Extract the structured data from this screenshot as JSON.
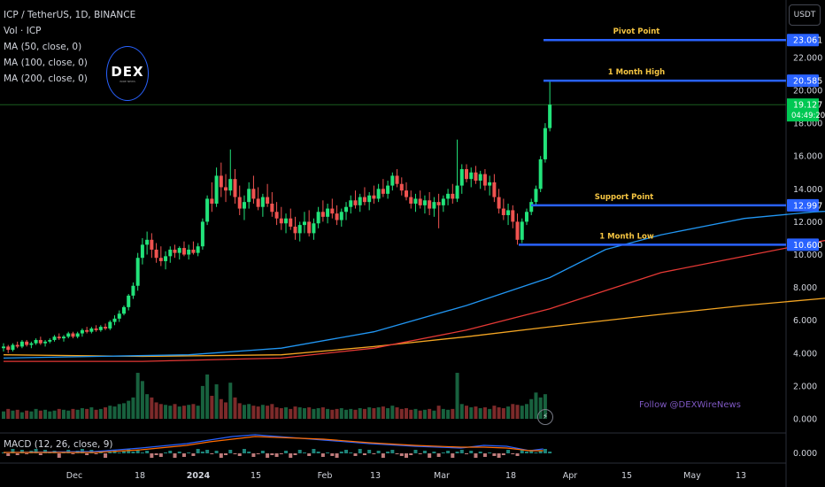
{
  "legend": {
    "symbol": "ICP / TetherUS, 1D, BINANCE",
    "volume": "Vol · ICP",
    "ma50": "MA (50, close, 0)",
    "ma100": "MA (100, close, 0)",
    "ma200": "MA (200, close, 0)"
  },
  "currency": "USDT",
  "logo": {
    "text": "DEX",
    "sub": "WIRE NEWS"
  },
  "follow_text": "Follow @DEXWireNews",
  "macd_label": "MACD (12, 26, close, 9)",
  "colors": {
    "up": "#22e37a",
    "down": "#ef5350",
    "ma50": "#2196f3",
    "ma100": "#e53935",
    "ma200": "#f5a623",
    "level_line": "#2962ff",
    "level_label": "#f5c542",
    "price_tag": "#00c853"
  },
  "price_axis": [
    "22.000",
    "20.000",
    "18.000",
    "16.000",
    "14.000",
    "12.000",
    "10.000",
    "8.000",
    "6.000",
    "4.000",
    "2.000",
    "0.000"
  ],
  "macd_axis": "0.000",
  "time_axis": [
    "Dec",
    "18",
    "2024",
    "15",
    "Feb",
    "13",
    "Mar",
    "18",
    "Apr",
    "15",
    "May",
    "13"
  ],
  "current_price": {
    "value": "19.127",
    "countdown": "04:49:20"
  },
  "levels": [
    {
      "name": "Pivot Point",
      "value": "23.061",
      "price": 23.061
    },
    {
      "name": "1 Month High",
      "value": "20.585",
      "price": 20.585
    },
    {
      "name": "Support Point",
      "value": "12.997",
      "price": 12.997
    },
    {
      "name": "1 Month Low",
      "value": "10.600",
      "price": 10.6
    }
  ],
  "chart_data": {
    "type": "candlestick",
    "series": [
      {
        "name": "MA (50, close, 0)"
      },
      {
        "name": "MA (100, close, 0)"
      },
      {
        "name": "MA (200, close, 0)"
      }
    ],
    "candles": [
      [
        4.3,
        4.6,
        4.1,
        4.4
      ],
      [
        4.4,
        4.5,
        4.0,
        4.2
      ],
      [
        4.2,
        4.6,
        4.1,
        4.5
      ],
      [
        4.5,
        4.7,
        4.3,
        4.4
      ],
      [
        4.4,
        4.8,
        4.3,
        4.7
      ],
      [
        4.7,
        4.8,
        4.4,
        4.5
      ],
      [
        4.5,
        4.7,
        4.3,
        4.6
      ],
      [
        4.6,
        4.9,
        4.5,
        4.8
      ],
      [
        4.8,
        5.0,
        4.5,
        4.6
      ],
      [
        4.6,
        4.8,
        4.4,
        4.7
      ],
      [
        4.7,
        4.9,
        4.6,
        4.8
      ],
      [
        4.8,
        5.1,
        4.7,
        5.0
      ],
      [
        5.0,
        5.2,
        4.8,
        4.9
      ],
      [
        4.9,
        5.1,
        4.7,
        5.0
      ],
      [
        5.0,
        5.3,
        4.9,
        5.2
      ],
      [
        5.2,
        5.3,
        4.9,
        5.0
      ],
      [
        5.0,
        5.3,
        4.9,
        5.2
      ],
      [
        5.2,
        5.5,
        5.0,
        5.4
      ],
      [
        5.4,
        5.6,
        5.2,
        5.3
      ],
      [
        5.3,
        5.6,
        5.2,
        5.5
      ],
      [
        5.5,
        5.7,
        5.3,
        5.4
      ],
      [
        5.4,
        5.7,
        5.3,
        5.6
      ],
      [
        5.6,
        5.8,
        5.4,
        5.5
      ],
      [
        5.5,
        6.0,
        5.4,
        5.9
      ],
      [
        5.9,
        6.3,
        5.7,
        6.1
      ],
      [
        6.1,
        6.6,
        5.9,
        6.4
      ],
      [
        6.4,
        6.9,
        6.3,
        6.8
      ],
      [
        6.8,
        7.6,
        6.6,
        7.5
      ],
      [
        7.5,
        8.3,
        7.3,
        8.1
      ],
      [
        8.1,
        10.1,
        7.8,
        9.8
      ],
      [
        9.8,
        11.0,
        9.4,
        10.6
      ],
      [
        10.6,
        11.4,
        10.0,
        10.9
      ],
      [
        10.9,
        11.3,
        9.8,
        10.3
      ],
      [
        10.3,
        10.7,
        9.5,
        9.8
      ],
      [
        9.8,
        10.5,
        9.3,
        9.6
      ],
      [
        9.6,
        10.2,
        9.1,
        9.9
      ],
      [
        9.9,
        10.5,
        9.5,
        10.3
      ],
      [
        10.3,
        10.6,
        9.8,
        10.1
      ],
      [
        10.1,
        10.5,
        9.7,
        10.4
      ],
      [
        10.4,
        10.8,
        9.9,
        10.0
      ],
      [
        10.0,
        10.6,
        9.7,
        10.3
      ],
      [
        10.3,
        10.8,
        10.0,
        10.1
      ],
      [
        10.1,
        10.7,
        9.9,
        10.5
      ],
      [
        10.5,
        12.2,
        10.3,
        12.0
      ],
      [
        12.0,
        13.6,
        11.8,
        13.4
      ],
      [
        13.4,
        14.4,
        12.6,
        13.1
      ],
      [
        13.1,
        15.3,
        12.9,
        14.8
      ],
      [
        14.8,
        15.6,
        13.5,
        14.1
      ],
      [
        14.1,
        14.9,
        13.2,
        13.9
      ],
      [
        13.9,
        16.4,
        13.6,
        14.6
      ],
      [
        14.6,
        15.2,
        13.1,
        13.5
      ],
      [
        13.5,
        14.2,
        12.4,
        12.8
      ],
      [
        12.8,
        13.6,
        12.1,
        13.2
      ],
      [
        13.2,
        14.4,
        12.8,
        14.0
      ],
      [
        14.0,
        14.8,
        13.1,
        13.4
      ],
      [
        13.4,
        14.1,
        12.7,
        12.9
      ],
      [
        12.9,
        13.7,
        12.3,
        13.5
      ],
      [
        13.5,
        14.3,
        12.9,
        13.1
      ],
      [
        13.1,
        13.8,
        12.3,
        12.6
      ],
      [
        12.6,
        13.2,
        11.8,
        12.2
      ],
      [
        12.2,
        12.9,
        11.5,
        11.9
      ],
      [
        11.9,
        12.5,
        11.3,
        12.2
      ],
      [
        12.2,
        12.8,
        11.5,
        11.7
      ],
      [
        11.7,
        12.3,
        10.9,
        11.3
      ],
      [
        11.3,
        12.0,
        10.8,
        11.8
      ],
      [
        11.8,
        12.6,
        11.3,
        12.0
      ],
      [
        12.0,
        12.7,
        11.1,
        11.3
      ],
      [
        11.3,
        12.2,
        10.9,
        11.9
      ],
      [
        11.9,
        12.9,
        11.6,
        12.6
      ],
      [
        12.6,
        13.3,
        12.0,
        12.3
      ],
      [
        12.3,
        13.1,
        11.9,
        12.8
      ],
      [
        12.8,
        13.4,
        12.2,
        12.5
      ],
      [
        12.5,
        13.0,
        11.8,
        12.1
      ],
      [
        12.1,
        12.8,
        11.7,
        12.6
      ],
      [
        12.6,
        13.2,
        12.1,
        12.9
      ],
      [
        12.9,
        13.6,
        12.5,
        13.3
      ],
      [
        13.3,
        13.9,
        12.8,
        13.0
      ],
      [
        13.0,
        13.7,
        12.6,
        13.5
      ],
      [
        13.5,
        14.1,
        13.0,
        13.2
      ],
      [
        13.2,
        13.8,
        12.7,
        13.6
      ],
      [
        13.6,
        14.2,
        13.1,
        13.4
      ],
      [
        13.4,
        14.3,
        13.2,
        14.0
      ],
      [
        14.0,
        14.6,
        13.5,
        13.7
      ],
      [
        13.7,
        14.5,
        13.4,
        14.2
      ],
      [
        14.2,
        15.0,
        13.9,
        14.8
      ],
      [
        14.8,
        15.2,
        14.1,
        14.3
      ],
      [
        14.3,
        14.7,
        13.6,
        13.9
      ],
      [
        13.9,
        14.4,
        13.3,
        13.5
      ],
      [
        13.5,
        13.9,
        12.8,
        13.1
      ],
      [
        13.1,
        13.7,
        12.6,
        13.4
      ],
      [
        13.4,
        13.9,
        12.8,
        13.0
      ],
      [
        13.0,
        13.6,
        12.5,
        13.3
      ],
      [
        13.3,
        13.8,
        12.4,
        12.8
      ],
      [
        12.8,
        13.5,
        12.3,
        13.2
      ],
      [
        13.2,
        13.7,
        11.6,
        13.0
      ],
      [
        13.0,
        13.6,
        12.6,
        13.4
      ],
      [
        13.4,
        14.0,
        13.0,
        13.7
      ],
      [
        13.7,
        14.3,
        13.1,
        13.4
      ],
      [
        13.4,
        17.0,
        13.2,
        14.2
      ],
      [
        14.2,
        15.5,
        13.7,
        15.2
      ],
      [
        15.2,
        15.5,
        14.4,
        14.6
      ],
      [
        14.6,
        15.3,
        14.1,
        15.0
      ],
      [
        15.0,
        15.4,
        14.3,
        14.5
      ],
      [
        14.5,
        15.1,
        14.0,
        14.9
      ],
      [
        14.9,
        15.2,
        13.9,
        14.2
      ],
      [
        14.2,
        14.8,
        13.6,
        14.4
      ],
      [
        14.4,
        14.9,
        13.2,
        13.5
      ],
      [
        13.5,
        14.0,
        12.5,
        12.8
      ],
      [
        12.8,
        13.4,
        12.1,
        12.4
      ],
      [
        12.4,
        13.1,
        11.8,
        12.7
      ],
      [
        12.7,
        13.0,
        11.6,
        12.0
      ],
      [
        12.0,
        12.5,
        10.6,
        10.9
      ],
      [
        10.9,
        12.2,
        10.7,
        12.0
      ],
      [
        12.0,
        12.8,
        11.8,
        12.6
      ],
      [
        12.6,
        13.4,
        12.4,
        13.2
      ],
      [
        13.2,
        14.2,
        13.0,
        14.0
      ],
      [
        14.0,
        16.0,
        13.8,
        15.8
      ],
      [
        15.8,
        18.0,
        15.6,
        17.7
      ],
      [
        17.7,
        20.585,
        17.5,
        19.127
      ]
    ],
    "volume": [
      0.45,
      0.6,
      0.5,
      0.55,
      0.4,
      0.5,
      0.45,
      0.6,
      0.5,
      0.55,
      0.45,
      0.5,
      0.6,
      0.55,
      0.5,
      0.6,
      0.55,
      0.65,
      0.6,
      0.7,
      0.55,
      0.6,
      0.7,
      0.8,
      0.75,
      0.9,
      0.95,
      1.1,
      1.3,
      2.8,
      2.3,
      1.5,
      1.3,
      1.0,
      0.9,
      0.85,
      0.8,
      0.9,
      0.75,
      0.8,
      0.85,
      0.9,
      0.8,
      2.0,
      2.7,
      1.4,
      2.1,
      1.2,
      1.0,
      2.2,
      1.3,
      0.95,
      0.85,
      0.9,
      0.8,
      0.75,
      0.85,
      0.8,
      0.9,
      0.7,
      0.65,
      0.7,
      0.6,
      0.75,
      0.7,
      0.65,
      0.7,
      0.6,
      0.65,
      0.7,
      0.6,
      0.55,
      0.6,
      0.65,
      0.55,
      0.6,
      0.55,
      0.65,
      0.6,
      0.7,
      0.65,
      0.7,
      0.75,
      0.65,
      0.8,
      0.7,
      0.6,
      0.65,
      0.55,
      0.6,
      0.5,
      0.55,
      0.6,
      0.5,
      0.8,
      0.6,
      0.55,
      0.6,
      2.8,
      0.9,
      0.8,
      0.7,
      0.75,
      0.65,
      0.7,
      0.6,
      0.8,
      0.7,
      0.65,
      0.75,
      0.9,
      0.85,
      0.8,
      0.9,
      1.2,
      1.6,
      1.3,
      1.5
    ],
    "ma50": [
      [
        0,
        3.7
      ],
      [
        20,
        3.8
      ],
      [
        40,
        3.9
      ],
      [
        60,
        4.3
      ],
      [
        80,
        5.3
      ],
      [
        100,
        6.9
      ],
      [
        118,
        8.6
      ],
      [
        130,
        10.3
      ],
      [
        142,
        11.2
      ],
      [
        160,
        12.2
      ],
      [
        175,
        12.6
      ],
      [
        190,
        12.8
      ],
      [
        205,
        13.0
      ],
      [
        210,
        13.4
      ]
    ],
    "ma100": [
      [
        0,
        3.5
      ],
      [
        30,
        3.5
      ],
      [
        60,
        3.7
      ],
      [
        80,
        4.3
      ],
      [
        100,
        5.4
      ],
      [
        118,
        6.7
      ],
      [
        130,
        7.8
      ],
      [
        142,
        8.9
      ],
      [
        160,
        9.9
      ],
      [
        180,
        11.0
      ],
      [
        200,
        12.0
      ],
      [
        210,
        12.6
      ]
    ],
    "ma200": [
      [
        0,
        3.9
      ],
      [
        30,
        3.8
      ],
      [
        60,
        3.9
      ],
      [
        80,
        4.4
      ],
      [
        100,
        5.0
      ],
      [
        118,
        5.6
      ],
      [
        140,
        6.3
      ],
      [
        160,
        6.9
      ],
      [
        180,
        7.4
      ],
      [
        200,
        7.9
      ],
      [
        210,
        8.3
      ]
    ],
    "ylim": [
      0,
      23.5
    ]
  }
}
